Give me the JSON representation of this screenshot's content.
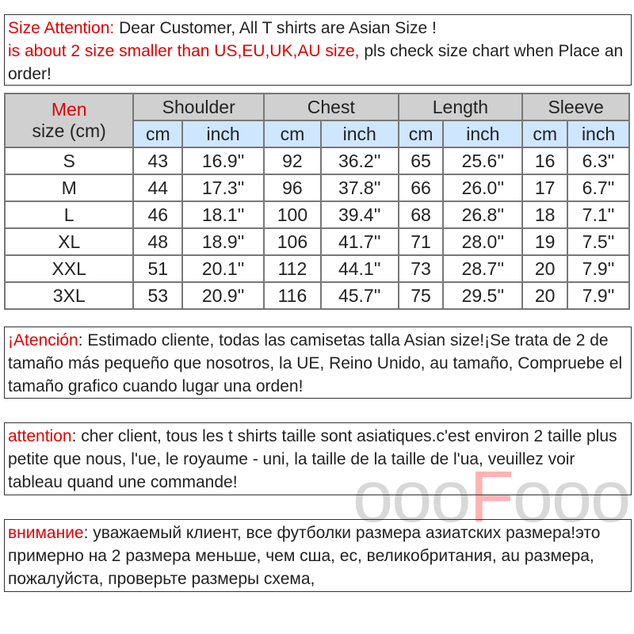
{
  "notice_en": {
    "label": "Size Attention:",
    "text1": " Dear Customer, All T shirts are  Asian Size !",
    "red_line": "is about 2 size smaller than US,EU,UK,AU size,",
    "text2": " pls check size chart when Place an order!"
  },
  "table": {
    "corner": {
      "red": "Men",
      "label": "size (cm)"
    },
    "groups": [
      "Shoulder",
      "Chest",
      "Length",
      "Sleeve"
    ],
    "units": [
      "cm",
      "inch"
    ],
    "rows": [
      [
        "S",
        "43",
        "16.9''",
        "92",
        "36.2''",
        "65",
        "25.6''",
        "16",
        "6.3''"
      ],
      [
        "M",
        "44",
        "17.3''",
        "96",
        "37.8''",
        "66",
        "26.0''",
        "17",
        "6.7''"
      ],
      [
        "L",
        "46",
        "18.1''",
        "100",
        "39.4''",
        "68",
        "26.8''",
        "18",
        "7.1''"
      ],
      [
        "XL",
        "48",
        "18.9''",
        "106",
        "41.7''",
        "71",
        "28.0''",
        "19",
        "7.5''"
      ],
      [
        "XXL",
        "51",
        "20.1''",
        "112",
        "44.1''",
        "73",
        "28.7''",
        "20",
        "7.9''"
      ],
      [
        "3XL",
        "53",
        "20.9''",
        "116",
        "45.7''",
        "75",
        "29.5''",
        "20",
        "7.9''"
      ]
    ]
  },
  "notice_es": {
    "label": "¡Atención",
    "text": ": Estimado cliente, todas las camisetas talla Asian size!¡Se trata de 2 de tamaño más pequeño que nosotros, la UE, Reino Unido, au tamaño, Compruebe el tamaño grafico cuando lugar una orden!"
  },
  "notice_fr": {
    "label": "attention",
    "text": ": cher client, tous les t shirts taille sont asiatiques.c'est environ 2 taille plus petite que nous, l'ue, le royaume - uni, la taille de la taille de l'ua, veuillez voir tableau quand une commande!"
  },
  "notice_ru": {
    "label": "внимание",
    "text": ": уважаемый клиент, все футболки размера азиатских размера!это примерно на 2 размера меньше, чем сша, ес, великобритания, au размера, пожалуйста, проверьте размеры схема,"
  },
  "watermark": {
    "pre": "ooo",
    "f": "F",
    "post": "ooo"
  },
  "colors": {
    "accent": "#e00000",
    "header": "#d0d0d0",
    "unit_header": "#cfe6ff"
  }
}
